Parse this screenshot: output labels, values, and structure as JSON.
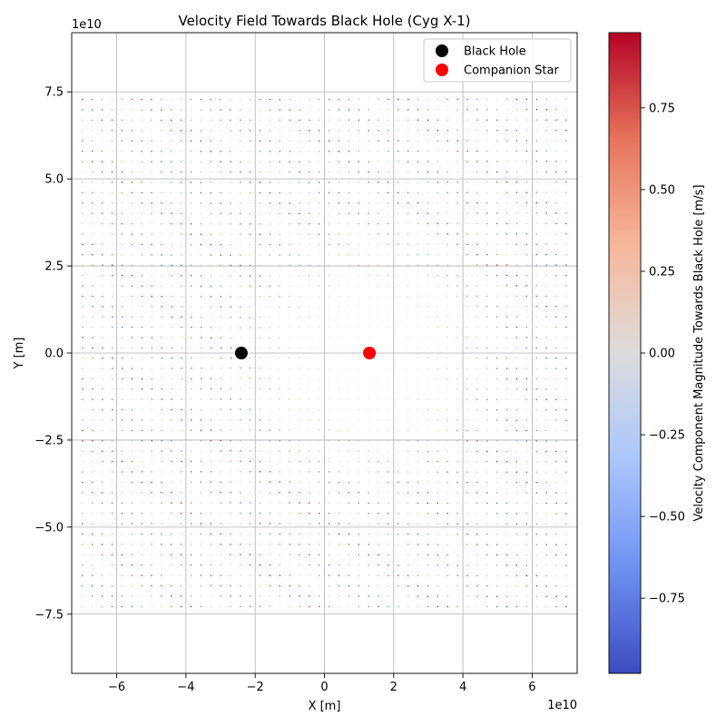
{
  "chart_data": {
    "type": "quiver",
    "title": "Velocity Field Towards Black Hole (Cyg X-1)",
    "xlabel": "X [m]",
    "ylabel": "Y [m]",
    "x_offset_label": "1e10",
    "y_offset_label": "1e10",
    "xlim": [
      -7.3,
      7.3
    ],
    "ylim": [
      -9.2,
      9.2
    ],
    "xticks": [
      -6,
      -4,
      -2,
      0,
      2,
      4,
      6
    ],
    "xtick_labels": [
      "−6",
      "−4",
      "−2",
      "0",
      "2",
      "4",
      "6"
    ],
    "yticks": [
      -7.5,
      -5.0,
      -2.5,
      0.0,
      2.5,
      5.0,
      7.5
    ],
    "ytick_labels": [
      "−7.5",
      "−5.0",
      "−2.5",
      "0.0",
      "2.5",
      "5.0",
      "7.5"
    ],
    "grid": true,
    "field_x_range": [
      -7.0,
      7.0
    ],
    "field_y_range": [
      -7.3,
      7.3
    ],
    "field_nx": 50,
    "field_ny": 50,
    "points": [
      {
        "name": "Black Hole",
        "x": -2.4,
        "y": 0.0,
        "color": "#000000"
      },
      {
        "name": "Companion Star",
        "x": 1.3,
        "y": 0.0,
        "color": "#ff0000"
      }
    ],
    "legend_position": "upper-right",
    "colorbar": {
      "label": "Velocity Component Magnitude Towards Black Hole [m/s]",
      "colormap": "coolwarm",
      "range": [
        -0.98,
        0.98
      ],
      "ticks": [
        -0.75,
        -0.5,
        -0.25,
        0.0,
        0.25,
        0.5,
        0.75
      ],
      "tick_labels": [
        "−0.75",
        "−0.50",
        "−0.25",
        "0.00",
        "0.25",
        "0.50",
        "0.75"
      ],
      "stops": [
        "#3b4cc0",
        "#6f92f3",
        "#aac7fd",
        "#dddcdc",
        "#f7b89c",
        "#e7745b",
        "#b40426"
      ]
    }
  }
}
